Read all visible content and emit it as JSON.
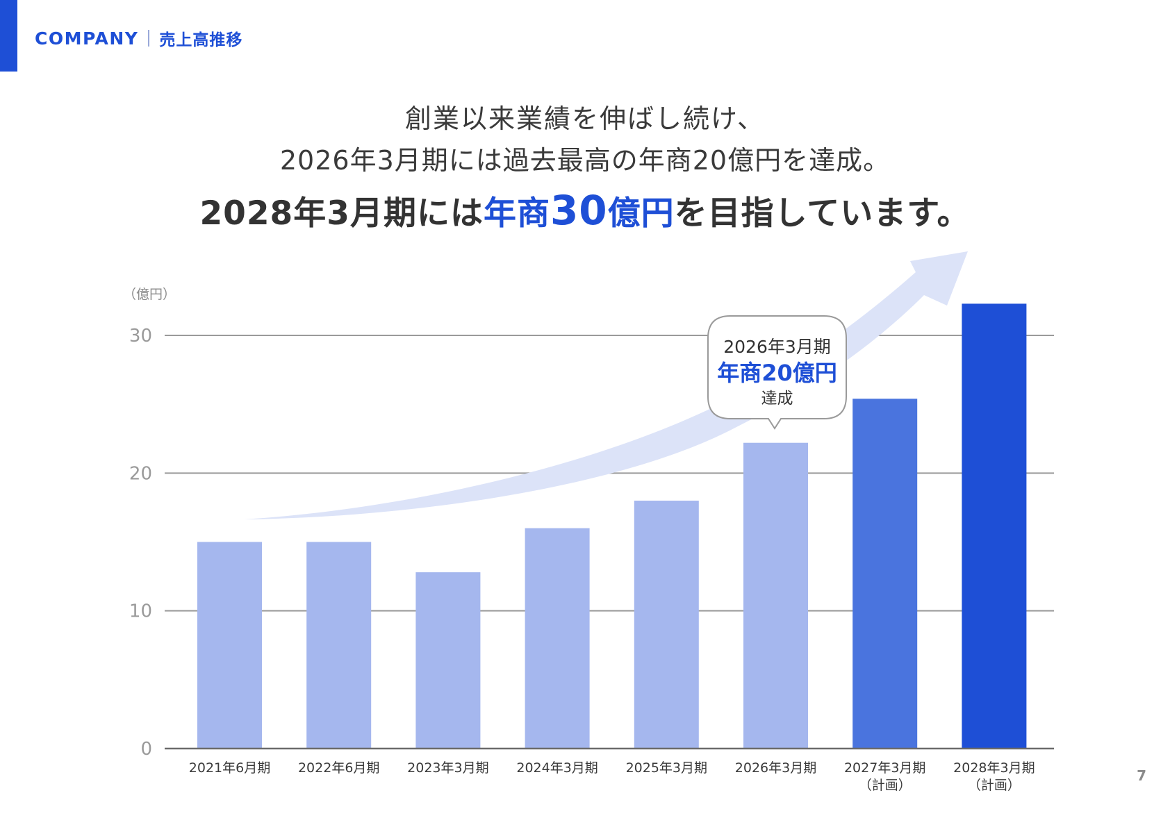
{
  "header": {
    "company": "COMPANY",
    "section": "売上高推移"
  },
  "headline": {
    "line1": "創業以来業績を伸ばし続け、",
    "line2": "2026年3月期には過去最高の年商20億円を達成。",
    "line3_prefix": "2028年3月期には",
    "line3_highlight_a": "年商",
    "line3_highlight_num": "30",
    "line3_highlight_b": "億円",
    "line3_suffix": "を目指しています。"
  },
  "callout": {
    "line1": "2026年3月期",
    "line2": "年商20億円",
    "line3": "達成"
  },
  "page_number": "7",
  "colors": {
    "brand": "#1E4FD6",
    "actual_bar": "#A5B7EE",
    "plan_bar_2027": "#4A74DE",
    "plan_bar_2028": "#1E4FD6",
    "trend_arrow": "#DCE3F8",
    "grid": "#9a9a9a"
  },
  "chart_data": {
    "type": "bar",
    "title": "",
    "xlabel": "",
    "ylabel": "（億円）",
    "ylim": [
      0,
      30
    ],
    "yticks": [
      0,
      10,
      20,
      30
    ],
    "grid": true,
    "categories": [
      [
        "2021年6月期"
      ],
      [
        "2022年6月期"
      ],
      [
        "2023年3月期"
      ],
      [
        "2024年3月期"
      ],
      [
        "2025年3月期"
      ],
      [
        "2026年3月期"
      ],
      [
        "2027年3月期",
        "（計画）"
      ],
      [
        "2028年3月期",
        "（計画）"
      ]
    ],
    "values": [
      15.0,
      15.0,
      12.8,
      16.0,
      18.0,
      22.2,
      25.4,
      32.3
    ],
    "bar_kind": [
      "actual",
      "actual",
      "actual",
      "actual",
      "actual",
      "actual",
      "plan",
      "plan"
    ],
    "annotations": [
      {
        "target_index": 5,
        "text": [
          "2026年3月期",
          "年商20億円",
          "達成"
        ]
      },
      {
        "type": "trend-arrow",
        "direction": "up-right"
      }
    ]
  }
}
